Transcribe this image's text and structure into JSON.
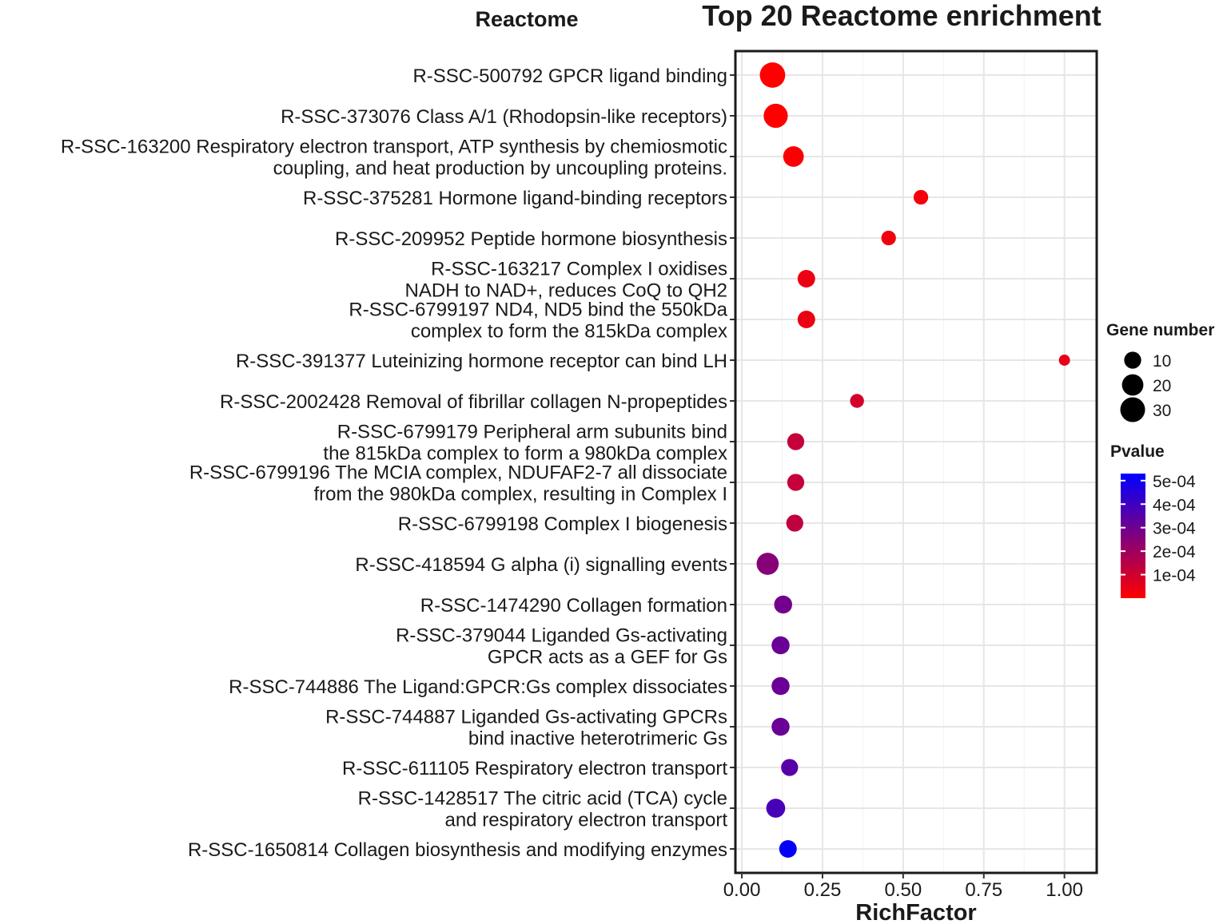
{
  "chart_data": {
    "type": "scatter",
    "panel_label": "Reactome",
    "title": "Top 20 Reactome enrichment",
    "xlabel": "RichFactor",
    "ylabel": "",
    "xlim": [
      -0.02,
      1.1
    ],
    "xticks": [
      0.0,
      0.25,
      0.5,
      0.75,
      1.0
    ],
    "xtick_labels": [
      "0.00",
      "0.25",
      "0.50",
      "0.75",
      "1.00"
    ],
    "grid": true,
    "pathways": [
      {
        "lines": [
          "R-SSC-500792 GPCR ligand binding"
        ],
        "rich_factor": 0.095,
        "gene_number": 32,
        "pvalue": 0.0
      },
      {
        "lines": [
          "R-SSC-373076 Class A/1 (Rhodopsin-like receptors)"
        ],
        "rich_factor": 0.105,
        "gene_number": 28,
        "pvalue": 0.0
      },
      {
        "lines": [
          "R-SSC-163200 Respiratory electron transport, ATP synthesis by chemiosmotic",
          "coupling, and heat production by uncoupling proteins."
        ],
        "rich_factor": 0.16,
        "gene_number": 18,
        "pvalue": 1e-05
      },
      {
        "lines": [
          "R-SSC-375281 Hormone ligand-binding receptors"
        ],
        "rich_factor": 0.555,
        "gene_number": 6,
        "pvalue": 2e-05
      },
      {
        "lines": [
          "R-SSC-209952 Peptide hormone biosynthesis"
        ],
        "rich_factor": 0.455,
        "gene_number": 6,
        "pvalue": 3e-05
      },
      {
        "lines": [
          "R-SSC-163217 Complex I oxidises",
          "NADH to NAD+, reduces CoQ to QH2"
        ],
        "rich_factor": 0.2,
        "gene_number": 11,
        "pvalue": 4e-05
      },
      {
        "lines": [
          "R-SSC-6799197 ND4, ND5 bind the 550kDa",
          "complex to form the 815kDa complex"
        ],
        "rich_factor": 0.2,
        "gene_number": 11,
        "pvalue": 4e-05
      },
      {
        "lines": [
          "R-SSC-391377 Luteinizing hormone receptor can bind LH"
        ],
        "rich_factor": 1.0,
        "gene_number": 2,
        "pvalue": 5e-05
      },
      {
        "lines": [
          "R-SSC-2002428 Removal of fibrillar collagen N-propeptides"
        ],
        "rich_factor": 0.357,
        "gene_number": 5,
        "pvalue": 9e-05
      },
      {
        "lines": [
          "R-SSC-6799179 Peripheral arm subunits bind",
          "the 815kDa complex to form a 980kDa complex"
        ],
        "rich_factor": 0.167,
        "gene_number": 10,
        "pvalue": 0.00012
      },
      {
        "lines": [
          "R-SSC-6799196 The MCIA complex, NDUFAF2-7 all dissociate",
          "from the 980kDa complex, resulting in Complex I"
        ],
        "rich_factor": 0.167,
        "gene_number": 10,
        "pvalue": 0.00012
      },
      {
        "lines": [
          "R-SSC-6799198 Complex I biogenesis"
        ],
        "rich_factor": 0.164,
        "gene_number": 10,
        "pvalue": 0.00013
      },
      {
        "lines": [
          "R-SSC-418594 G alpha (i) signalling events"
        ],
        "rich_factor": 0.08,
        "gene_number": 22,
        "pvalue": 0.00025
      },
      {
        "lines": [
          "R-SSC-1474290 Collagen formation"
        ],
        "rich_factor": 0.128,
        "gene_number": 12,
        "pvalue": 0.00029
      },
      {
        "lines": [
          "R-SSC-379044 Liganded Gs-activating",
          "GPCR acts as a GEF for Gs"
        ],
        "rich_factor": 0.12,
        "gene_number": 12,
        "pvalue": 0.00031
      },
      {
        "lines": [
          "R-SSC-744886 The Ligand:GPCR:Gs complex dissociates"
        ],
        "rich_factor": 0.12,
        "gene_number": 12,
        "pvalue": 0.00031
      },
      {
        "lines": [
          "R-SSC-744887 Liganded Gs-activating GPCRs",
          "bind inactive heterotrimeric Gs"
        ],
        "rich_factor": 0.12,
        "gene_number": 12,
        "pvalue": 0.00031
      },
      {
        "lines": [
          "R-SSC-611105 Respiratory electron transport"
        ],
        "rich_factor": 0.148,
        "gene_number": 10,
        "pvalue": 0.00035
      },
      {
        "lines": [
          "R-SSC-1428517 The citric acid (TCA) cycle",
          "and respiratory electron transport"
        ],
        "rich_factor": 0.105,
        "gene_number": 14,
        "pvalue": 0.00038
      },
      {
        "lines": [
          "R-SSC-1650814 Collagen biosynthesis and modifying enzymes"
        ],
        "rich_factor": 0.143,
        "gene_number": 11,
        "pvalue": 0.00052
      }
    ],
    "size_legend": {
      "title": "Gene number",
      "values": [
        10,
        20,
        30
      ],
      "labels": [
        "10",
        "20",
        "30"
      ]
    },
    "color_legend": {
      "title": "Pvalue",
      "min": 0.0,
      "max": 0.00053,
      "ticks": [
        0.0005,
        0.0004,
        0.0003,
        0.0002,
        0.0001
      ],
      "tick_labels": [
        "5e-04",
        "4e-04",
        "3e-04",
        "2e-04",
        "1e-04"
      ],
      "low_color": "#ff0000",
      "high_color": "#0000ff"
    }
  }
}
